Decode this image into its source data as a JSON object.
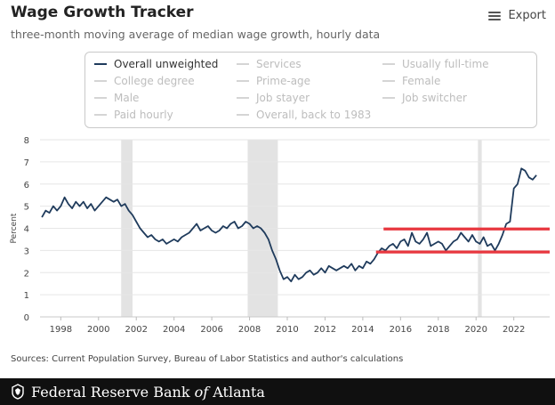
{
  "header": {
    "title": "Wage Growth Tracker",
    "subtitle": "three-month moving average of median wage growth, hourly data",
    "export_label": "Export"
  },
  "legend": {
    "items": [
      {
        "label": "Overall unweighted",
        "active": true
      },
      {
        "label": "Services",
        "active": false
      },
      {
        "label": "Usually full-time",
        "active": false
      },
      {
        "label": "College degree",
        "active": false
      },
      {
        "label": "Prime-age",
        "active": false
      },
      {
        "label": "Female",
        "active": false
      },
      {
        "label": "Male",
        "active": false
      },
      {
        "label": "Job stayer",
        "active": false
      },
      {
        "label": "Job switcher",
        "active": false
      },
      {
        "label": "Paid hourly",
        "active": false
      },
      {
        "label": "Overall, back to 1983",
        "active": false
      }
    ]
  },
  "chart_data": {
    "type": "line",
    "title": "Wage Growth Tracker",
    "xlabel": "",
    "ylabel": "Percent",
    "xlim": [
      1996.9,
      2023.9
    ],
    "ylim": [
      0,
      8
    ],
    "x_ticks": [
      1998,
      2000,
      2002,
      2004,
      2006,
      2008,
      2010,
      2012,
      2014,
      2016,
      2018,
      2020,
      2022
    ],
    "y_ticks": [
      0,
      1,
      2,
      3,
      4,
      5,
      6,
      7,
      8
    ],
    "grid": true,
    "recessions": [
      [
        2001.2,
        2001.8
      ],
      [
        2007.9,
        2009.5
      ],
      [
        2020.1,
        2020.3
      ]
    ],
    "series": [
      {
        "name": "Overall unweighted",
        "color": "#1f3b5c",
        "x": [
          1997.0,
          1997.2,
          1997.4,
          1997.6,
          1997.8,
          1998.0,
          1998.2,
          1998.4,
          1998.6,
          1998.8,
          1999.0,
          1999.2,
          1999.4,
          1999.6,
          1999.8,
          2000.0,
          2000.2,
          2000.4,
          2000.6,
          2000.8,
          2001.0,
          2001.2,
          2001.4,
          2001.6,
          2001.8,
          2002.0,
          2002.2,
          2002.4,
          2002.6,
          2002.8,
          2003.0,
          2003.2,
          2003.4,
          2003.6,
          2003.8,
          2004.0,
          2004.2,
          2004.4,
          2004.6,
          2004.8,
          2005.0,
          2005.2,
          2005.4,
          2005.6,
          2005.8,
          2006.0,
          2006.2,
          2006.4,
          2006.6,
          2006.8,
          2007.0,
          2007.2,
          2007.4,
          2007.6,
          2007.8,
          2008.0,
          2008.2,
          2008.4,
          2008.6,
          2008.8,
          2009.0,
          2009.2,
          2009.4,
          2009.6,
          2009.8,
          2010.0,
          2010.2,
          2010.4,
          2010.6,
          2010.8,
          2011.0,
          2011.2,
          2011.4,
          2011.6,
          2011.8,
          2012.0,
          2012.2,
          2012.4,
          2012.6,
          2012.8,
          2013.0,
          2013.2,
          2013.4,
          2013.6,
          2013.8,
          2014.0,
          2014.2,
          2014.4,
          2014.6,
          2014.8,
          2015.0,
          2015.2,
          2015.4,
          2015.6,
          2015.8,
          2016.0,
          2016.2,
          2016.4,
          2016.6,
          2016.8,
          2017.0,
          2017.2,
          2017.4,
          2017.6,
          2017.8,
          2018.0,
          2018.2,
          2018.4,
          2018.6,
          2018.8,
          2019.0,
          2019.2,
          2019.4,
          2019.6,
          2019.8,
          2020.0,
          2020.2,
          2020.4,
          2020.6,
          2020.8,
          2021.0,
          2021.2,
          2021.4,
          2021.6,
          2021.8,
          2022.0,
          2022.2,
          2022.4,
          2022.6,
          2022.8,
          2023.0,
          2023.2
        ],
        "values": [
          4.5,
          4.8,
          4.7,
          5.0,
          4.8,
          5.0,
          5.4,
          5.1,
          4.9,
          5.2,
          5.0,
          5.2,
          4.9,
          5.1,
          4.8,
          5.0,
          5.2,
          5.4,
          5.3,
          5.2,
          5.3,
          5.0,
          5.1,
          4.8,
          4.6,
          4.3,
          4.0,
          3.8,
          3.6,
          3.7,
          3.5,
          3.4,
          3.5,
          3.3,
          3.4,
          3.5,
          3.4,
          3.6,
          3.7,
          3.8,
          4.0,
          4.2,
          3.9,
          4.0,
          4.1,
          3.9,
          3.8,
          3.9,
          4.1,
          4.0,
          4.2,
          4.3,
          4.0,
          4.1,
          4.3,
          4.2,
          4.0,
          4.1,
          4.0,
          3.8,
          3.5,
          3.0,
          2.6,
          2.1,
          1.7,
          1.8,
          1.6,
          1.9,
          1.7,
          1.8,
          2.0,
          2.1,
          1.9,
          2.0,
          2.2,
          2.0,
          2.3,
          2.2,
          2.1,
          2.2,
          2.3,
          2.2,
          2.4,
          2.1,
          2.3,
          2.2,
          2.5,
          2.4,
          2.6,
          2.9,
          3.1,
          3.0,
          3.2,
          3.3,
          3.1,
          3.4,
          3.5,
          3.2,
          3.8,
          3.4,
          3.3,
          3.5,
          3.8,
          3.2,
          3.3,
          3.4,
          3.3,
          3.0,
          3.2,
          3.4,
          3.5,
          3.8,
          3.6,
          3.4,
          3.7,
          3.4,
          3.3,
          3.6,
          3.2,
          3.3,
          3.0,
          3.3,
          3.7,
          4.2,
          4.3,
          5.8,
          6.0,
          6.7,
          6.6,
          6.3,
          6.2,
          6.4
        ]
      }
    ],
    "annotations": [
      {
        "type": "hline",
        "y": 3.97,
        "from": 2015.1,
        "to": 2023.9,
        "color": "#e8373f"
      },
      {
        "type": "hline",
        "y": 2.93,
        "from": 2014.7,
        "to": 2023.9,
        "color": "#e8373f"
      }
    ]
  },
  "sources": "Sources: Current Population Survey, Bureau of Labor Statistics and author's calculations",
  "footer": {
    "text_prefix": "Federal Reserve Bank ",
    "text_em": "of",
    "text_suffix": " Atlanta"
  }
}
